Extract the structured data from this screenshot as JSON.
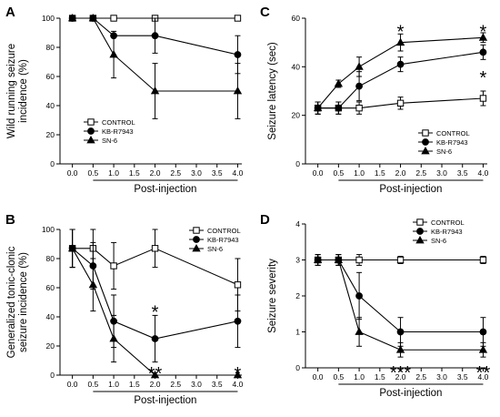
{
  "colors": {
    "ink": "#000000",
    "background": "#ffffff",
    "control_fill": "#ffffff"
  },
  "chart_data": [
    {
      "panel": "A",
      "type": "line",
      "xlabel": "Post-injection",
      "ylabel": [
        "Wild running seizure",
        "incidence (%)"
      ],
      "xlim": [
        -0.3,
        4.1
      ],
      "ylim": [
        0,
        100
      ],
      "xticks": [
        "0.0",
        "0.5",
        "1.0",
        "1.5",
        "2.0",
        "2.5",
        "3.0",
        "3.5",
        "4.0"
      ],
      "yticks": [
        "0",
        "20",
        "40",
        "60",
        "80",
        "100"
      ],
      "legend_position": "bottom-left",
      "series": [
        {
          "name": "CONTROL",
          "marker": "square-open",
          "x": [
            0,
            0.5,
            1,
            2,
            4
          ],
          "y": [
            100,
            100,
            100,
            100,
            100
          ],
          "err": [
            0,
            0,
            0,
            0,
            0
          ]
        },
        {
          "name": "KB-R7943",
          "marker": "circle-filled",
          "x": [
            0,
            0.5,
            1,
            2,
            4
          ],
          "y": [
            100,
            100,
            88,
            88,
            75
          ],
          "err": [
            0,
            0,
            0,
            12,
            13
          ]
        },
        {
          "name": "SN-6",
          "marker": "triangle-filled",
          "x": [
            0,
            0.5,
            1,
            2,
            4
          ],
          "y": [
            100,
            100,
            75,
            50,
            50
          ],
          "err": [
            0,
            0,
            16,
            19,
            19
          ]
        }
      ],
      "annotations": []
    },
    {
      "panel": "B",
      "type": "line",
      "xlabel": "Post-injection",
      "ylabel": [
        "Generalized tonic-clonic",
        "seizure incidence (%)"
      ],
      "xlim": [
        -0.3,
        4.1
      ],
      "ylim": [
        0,
        100
      ],
      "xticks": [
        "0.0",
        "0.5",
        "1.0",
        "1.5",
        "2.0",
        "2.5",
        "3.0",
        "3.5",
        "4.0"
      ],
      "yticks": [
        "0",
        "20",
        "40",
        "60",
        "80",
        "100"
      ],
      "legend_position": "top-right",
      "series": [
        {
          "name": "CONTROL",
          "marker": "square-open",
          "x": [
            0,
            0.5,
            1,
            2,
            4
          ],
          "y": [
            87,
            87,
            75,
            87,
            62
          ],
          "err": [
            13,
            13,
            16,
            13,
            18
          ]
        },
        {
          "name": "KB-R7943",
          "marker": "circle-filled",
          "x": [
            0,
            0.5,
            1,
            2,
            4
          ],
          "y": [
            87,
            75,
            37,
            25,
            37
          ],
          "err": [
            13,
            16,
            18,
            16,
            18
          ]
        },
        {
          "name": "SN-6",
          "marker": "triangle-filled",
          "x": [
            0,
            0.5,
            1,
            2,
            4
          ],
          "y": [
            87,
            62,
            25,
            0,
            0
          ],
          "err": [
            13,
            18,
            16,
            0,
            0
          ]
        }
      ],
      "annotations": [
        {
          "text": "*",
          "x": 2,
          "y": 44
        },
        {
          "text": "**",
          "x": 2,
          "y": 2
        },
        {
          "text": "*",
          "x": 4,
          "y": 2
        }
      ]
    },
    {
      "panel": "C",
      "type": "line",
      "xlabel": "Post-injection",
      "ylabel": [
        "Seizure latency (sec)"
      ],
      "xlim": [
        -0.3,
        4.1
      ],
      "ylim": [
        0,
        60
      ],
      "xticks": [
        "0.0",
        "0.5",
        "1.0",
        "1.5",
        "2.0",
        "2.5",
        "3.0",
        "3.5",
        "4.0"
      ],
      "yticks": [
        "0",
        "20",
        "40",
        "60"
      ],
      "legend_position": "bottom-right",
      "series": [
        {
          "name": "CONTROL",
          "marker": "square-open",
          "x": [
            0,
            0.5,
            1,
            2,
            4
          ],
          "y": [
            23,
            23,
            23,
            25,
            27
          ],
          "err": [
            2.5,
            2.5,
            2.5,
            2.5,
            3
          ]
        },
        {
          "name": "KB-R7943",
          "marker": "circle-filled",
          "x": [
            0,
            0.5,
            1,
            2,
            4
          ],
          "y": [
            23,
            23,
            32,
            41,
            46
          ],
          "err": [
            2.5,
            2.5,
            6,
            3,
            3
          ]
        },
        {
          "name": "SN-6",
          "marker": "triangle-filled",
          "x": [
            0,
            0.5,
            1,
            2,
            4
          ],
          "y": [
            23,
            33,
            40,
            50,
            52
          ],
          "err": [
            2.5,
            1.5,
            4,
            3.5,
            2
          ]
        }
      ],
      "annotations": [
        {
          "text": "*",
          "x": 2,
          "y": 55
        },
        {
          "text": "*",
          "x": 4,
          "y": 55
        },
        {
          "text": "*",
          "x": 4,
          "y": 36
        }
      ]
    },
    {
      "panel": "D",
      "type": "line",
      "xlabel": "Post-injection",
      "ylabel": [
        "Seizure severity"
      ],
      "xlim": [
        -0.3,
        4.1
      ],
      "ylim": [
        0,
        4
      ],
      "xticks": [
        "0.0",
        "0.5",
        "1.0",
        "1.5",
        "2.0",
        "2.5",
        "3.0",
        "3.5",
        "4.0"
      ],
      "yticks": [
        "0",
        "1",
        "2",
        "3",
        "4"
      ],
      "legend_position": "top-right",
      "series": [
        {
          "name": "CONTROL",
          "marker": "square-open",
          "x": [
            0,
            0.5,
            1,
            2,
            4
          ],
          "y": [
            3,
            3,
            3,
            3,
            3
          ],
          "err": [
            0.15,
            0.15,
            0.15,
            0.1,
            0.1
          ]
        },
        {
          "name": "KB-R7943",
          "marker": "circle-filled",
          "x": [
            0,
            0.5,
            1,
            2,
            4
          ],
          "y": [
            3,
            3,
            2,
            1,
            1
          ],
          "err": [
            0.15,
            0.15,
            0.65,
            0.4,
            0.4
          ]
        },
        {
          "name": "SN-6",
          "marker": "triangle-filled",
          "x": [
            0,
            0.5,
            1,
            2,
            4
          ],
          "y": [
            3,
            3,
            1,
            0.5,
            0.5
          ],
          "err": [
            0.15,
            0.15,
            0.4,
            0.2,
            0.2
          ]
        }
      ],
      "annotations": [
        {
          "text": "***",
          "x": 2,
          "y": -0.1
        },
        {
          "text": "**",
          "x": 4,
          "y": -0.1
        }
      ]
    }
  ]
}
